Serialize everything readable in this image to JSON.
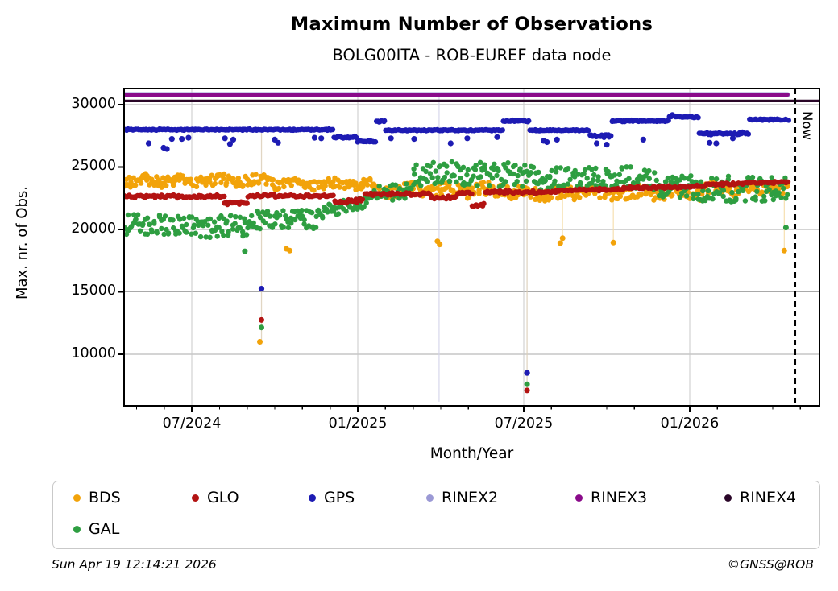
{
  "header": {
    "title": "Maximum Number of Observations",
    "subtitle": "BOLG00ITA - ROB-EUREF data node"
  },
  "chart_data": {
    "type": "scatter",
    "title": "Maximum Number of Observations",
    "subtitle": "BOLG00ITA - ROB-EUREF data node",
    "xlabel": "Month/Year",
    "ylabel": "Max. nr. of Obs.",
    "xlim": [
      2024.296,
      2026.391
    ],
    "ylim": [
      5870,
      31290
    ],
    "grid": true,
    "x_ticks": [
      {
        "t": 2024.5,
        "label": "07/2024"
      },
      {
        "t": 2025.0,
        "label": "01/2025"
      },
      {
        "t": 2025.5,
        "label": "07/2025"
      },
      {
        "t": 2026.0,
        "label": "01/2026"
      }
    ],
    "x_minor": {
      "anchor": 2024.5,
      "from": -2,
      "to": 22
    },
    "y_ticks": [
      {
        "v": 30000,
        "label": "30000"
      },
      {
        "v": 25000,
        "label": "25000"
      },
      {
        "v": 20000,
        "label": "20000"
      },
      {
        "v": 15000,
        "label": "15000"
      },
      {
        "v": 10000,
        "label": "10000"
      }
    ],
    "now_line": {
      "t": 2026.318,
      "label": "Now"
    },
    "droplines": [
      {
        "t": 2024.71,
        "v0": 28000,
        "v1": 10800,
        "color": "#dccfb9"
      },
      {
        "t": 2025.245,
        "v0": 30800,
        "v1": 6200,
        "color": "#d3d3ea"
      },
      {
        "t": 2025.51,
        "v0": 28700,
        "v1": 6900,
        "color": "#dccfb9"
      },
      {
        "t": 2025.617,
        "v0": 23000,
        "v1": 18800,
        "color": "#f6ddaa"
      },
      {
        "t": 2025.77,
        "v0": 23100,
        "v1": 18900,
        "color": "#f6ddaa"
      },
      {
        "t": 2026.285,
        "v0": 23300,
        "v1": 18200,
        "color": "#f6ddaa"
      }
    ],
    "series": [
      {
        "name": "BDS",
        "color": "#f2a30a",
        "marker_r": 3.2,
        "step": 0.007,
        "dots_per_step": 2,
        "jitter_mode": "flat",
        "wave": [
          170,
          55
        ],
        "segments": [
          [
            2024.296,
            2024.75,
            23900,
            23900,
            430
          ],
          [
            2024.75,
            2025.05,
            23650,
            23650,
            380
          ],
          [
            2025.05,
            2025.45,
            23150,
            23150,
            520
          ],
          [
            2025.45,
            2025.75,
            22900,
            22900,
            520
          ],
          [
            2025.75,
            2026.05,
            22950,
            22950,
            560
          ],
          [
            2026.05,
            2026.3,
            23250,
            23250,
            500
          ]
        ],
        "outliers": [
          [
            2024.705,
            11000
          ],
          [
            2024.785,
            18450
          ],
          [
            2024.795,
            18300
          ],
          [
            2025.24,
            19050
          ],
          [
            2025.247,
            18800
          ],
          [
            2025.61,
            18900
          ],
          [
            2025.617,
            19300
          ],
          [
            2025.77,
            18950
          ],
          [
            2026.285,
            18300
          ]
        ]
      },
      {
        "name": "GAL",
        "color": "#2e9e41",
        "marker_r": 3.2,
        "step": 0.007,
        "dots_per_step": 2,
        "jitter_mode": "flat",
        "segments": [
          [
            2024.296,
            2024.52,
            20400,
            20400,
            800
          ],
          [
            2024.52,
            2024.7,
            20200,
            20200,
            950
          ],
          [
            2024.7,
            2024.88,
            20800,
            20800,
            750
          ],
          [
            2024.88,
            2025.05,
            21400,
            22300,
            550
          ],
          [
            2025.05,
            2025.17,
            22800,
            23100,
            650
          ],
          [
            2025.17,
            2025.32,
            24400,
            24400,
            1050
          ],
          [
            2025.32,
            2025.55,
            24400,
            24300,
            1000
          ],
          [
            2025.55,
            2025.9,
            24100,
            24100,
            950
          ],
          [
            2025.9,
            2026.12,
            23300,
            23300,
            1050
          ],
          [
            2026.12,
            2026.3,
            23200,
            23200,
            1000
          ]
        ],
        "outliers": [
          [
            2024.66,
            18250
          ],
          [
            2024.71,
            12150
          ],
          [
            2025.51,
            7600
          ],
          [
            2026.29,
            20150
          ]
        ]
      },
      {
        "name": "GLO",
        "color": "#b31312",
        "marker_r": 3.2,
        "step": 0.0045,
        "dots_per_step": 1,
        "jitter_mode": "tri",
        "segments": [
          [
            2024.296,
            2024.6,
            22650,
            22650,
            140
          ],
          [
            2024.6,
            2024.67,
            22150,
            22150,
            180
          ],
          [
            2024.67,
            2024.93,
            22700,
            22700,
            130
          ],
          [
            2024.93,
            2025.02,
            22200,
            22350,
            220
          ],
          [
            2025.02,
            2025.22,
            22850,
            22850,
            130
          ],
          [
            2025.22,
            2025.3,
            22550,
            22550,
            200
          ],
          [
            2025.3,
            2025.345,
            22900,
            22900,
            130
          ],
          [
            2025.345,
            2025.385,
            21950,
            21950,
            150
          ],
          [
            2025.385,
            2025.6,
            23000,
            23000,
            130
          ],
          [
            2025.6,
            2025.8,
            23150,
            23250,
            150
          ],
          [
            2025.8,
            2026.05,
            23350,
            23450,
            150
          ],
          [
            2026.05,
            2026.3,
            23600,
            23800,
            150
          ]
        ],
        "outliers": [
          [
            2024.71,
            12750
          ],
          [
            2025.51,
            7100
          ]
        ]
      },
      {
        "name": "GPS",
        "color": "#1d1bb3",
        "marker_r": 3.3,
        "step": 0.0045,
        "dots_per_step": 1,
        "jitter_mode": "tri",
        "segments": [
          [
            2024.296,
            2024.93,
            28000,
            28000,
            60
          ],
          [
            2024.93,
            2025.0,
            27400,
            27400,
            90
          ],
          [
            2025.0,
            2025.055,
            27050,
            27050,
            70
          ],
          [
            2025.055,
            2025.085,
            28650,
            28650,
            80
          ],
          [
            2025.085,
            2025.44,
            27950,
            27950,
            60
          ],
          [
            2025.44,
            2025.52,
            28700,
            28700,
            80
          ],
          [
            2025.52,
            2025.7,
            27950,
            27950,
            60
          ],
          [
            2025.7,
            2025.765,
            27500,
            27500,
            170
          ],
          [
            2025.765,
            2025.94,
            28700,
            28700,
            70
          ],
          [
            2025.94,
            2026.03,
            29100,
            28950,
            120
          ],
          [
            2026.03,
            2026.18,
            27700,
            27700,
            130
          ],
          [
            2026.18,
            2026.3,
            28800,
            28800,
            70
          ]
        ],
        "outliers": [
          [
            2024.37,
            26900
          ],
          [
            2024.415,
            26550
          ],
          [
            2024.425,
            26450
          ],
          [
            2024.44,
            27250
          ],
          [
            2024.47,
            27250
          ],
          [
            2024.49,
            27350
          ],
          [
            2024.6,
            27300
          ],
          [
            2024.615,
            26850
          ],
          [
            2024.625,
            27200
          ],
          [
            2024.71,
            15250
          ],
          [
            2024.75,
            27200
          ],
          [
            2024.76,
            26950
          ],
          [
            2024.87,
            27350
          ],
          [
            2024.89,
            27300
          ],
          [
            2025.1,
            27300
          ],
          [
            2025.17,
            27250
          ],
          [
            2025.28,
            26900
          ],
          [
            2025.33,
            27300
          ],
          [
            2025.42,
            27400
          ],
          [
            2025.51,
            8500
          ],
          [
            2025.56,
            27100
          ],
          [
            2025.57,
            27000
          ],
          [
            2025.6,
            27200
          ],
          [
            2025.72,
            26900
          ],
          [
            2025.75,
            26800
          ],
          [
            2025.86,
            27200
          ],
          [
            2026.06,
            26950
          ],
          [
            2026.08,
            26900
          ],
          [
            2026.13,
            27300
          ]
        ]
      },
      {
        "name": "RINEX2",
        "color": "#9b99d5",
        "type": "hline",
        "v": 30800,
        "t0": 2024.296,
        "t1": 2026.295,
        "line_width": 6.2
      },
      {
        "name": "RINEX3",
        "color": "#8a0b8a",
        "type": "hline",
        "v": 30800,
        "t0": 2024.296,
        "t1": 2026.295,
        "line_width": 4.8
      },
      {
        "name": "RINEX4",
        "color": "#2a0628",
        "type": "hline",
        "v": 30300,
        "t0": 2024.296,
        "t1": 2026.391,
        "line_width": 3.2
      }
    ]
  },
  "legend": {
    "items": [
      {
        "label": "BDS",
        "color": "#f2a30a"
      },
      {
        "label": "GLO",
        "color": "#b31312"
      },
      {
        "label": "GPS",
        "color": "#1d1bb3"
      },
      {
        "label": "RINEX2",
        "color": "#9b99d5"
      },
      {
        "label": "RINEX3",
        "color": "#8a0b8a"
      },
      {
        "label": "RINEX4",
        "color": "#2a0628"
      },
      {
        "label": "GAL",
        "color": "#2e9e41"
      }
    ]
  },
  "footer": {
    "timestamp": "Sun Apr 19 12:14:21 2026",
    "credit": "©GNSS@ROB"
  }
}
